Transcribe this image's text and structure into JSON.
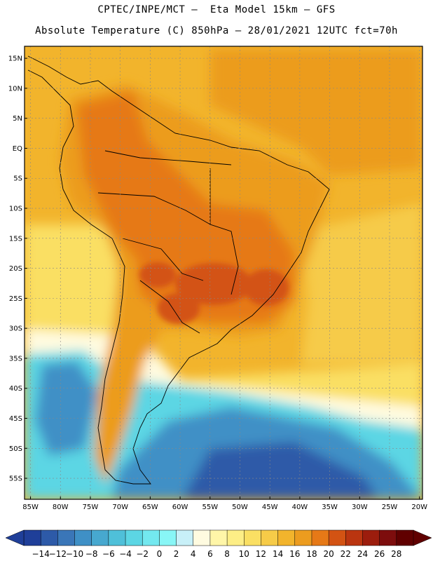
{
  "title_line1": "CPTEC/INPE/MCT –  Eta Model 15km – GFS",
  "title_line2": "Absolute Temperature (C) 850hPa – 28/01/2021 12UTC fct=70h",
  "latitude_labels": [
    "15N",
    "10N",
    "5N",
    "EQ",
    "5S",
    "10S",
    "15S",
    "20S",
    "25S",
    "30S",
    "35S",
    "40S",
    "45S",
    "50S",
    "55S"
  ],
  "longitude_labels": [
    "85W",
    "80W",
    "75W",
    "70W",
    "65W",
    "60W",
    "55W",
    "50W",
    "45W",
    "40W",
    "35W",
    "30W",
    "25W",
    "20W"
  ],
  "colorbar": {
    "labels": [
      "-14",
      "-12",
      "-10",
      "-8",
      "-6",
      "-4",
      "-2",
      "0",
      "2",
      "4",
      "6",
      "8",
      "10",
      "12",
      "14",
      "16",
      "18",
      "20",
      "22",
      "24",
      "26",
      "28"
    ],
    "colors": [
      "#1f3f99",
      "#2d5aa8",
      "#3a76b8",
      "#3f90c6",
      "#47a8cf",
      "#4fc0d9",
      "#5cd6e4",
      "#73e8ef",
      "#88f6f6",
      "#c8f0f8",
      "#fffbe0",
      "#fff6a8",
      "#fdee86",
      "#fadf63",
      "#f6cb48",
      "#f2b42c",
      "#ec9c1f",
      "#e67917",
      "#d35313",
      "#ba3510",
      "#9c1d0d",
      "#7d0d0d",
      "#600000"
    ]
  },
  "field_colors": {
    "ocean_tropical": "#f0b02a",
    "ocean_subtropical": "#f6cb48",
    "ocean_midlat": "#fadf63",
    "cool_band": "#fffbe0",
    "cold_ocean": "#5cd6e4",
    "very_cold": "#3f90c6",
    "land_warm": "#ec9c1f",
    "land_hot": "#e67917",
    "land_hotter": "#d35313"
  }
}
